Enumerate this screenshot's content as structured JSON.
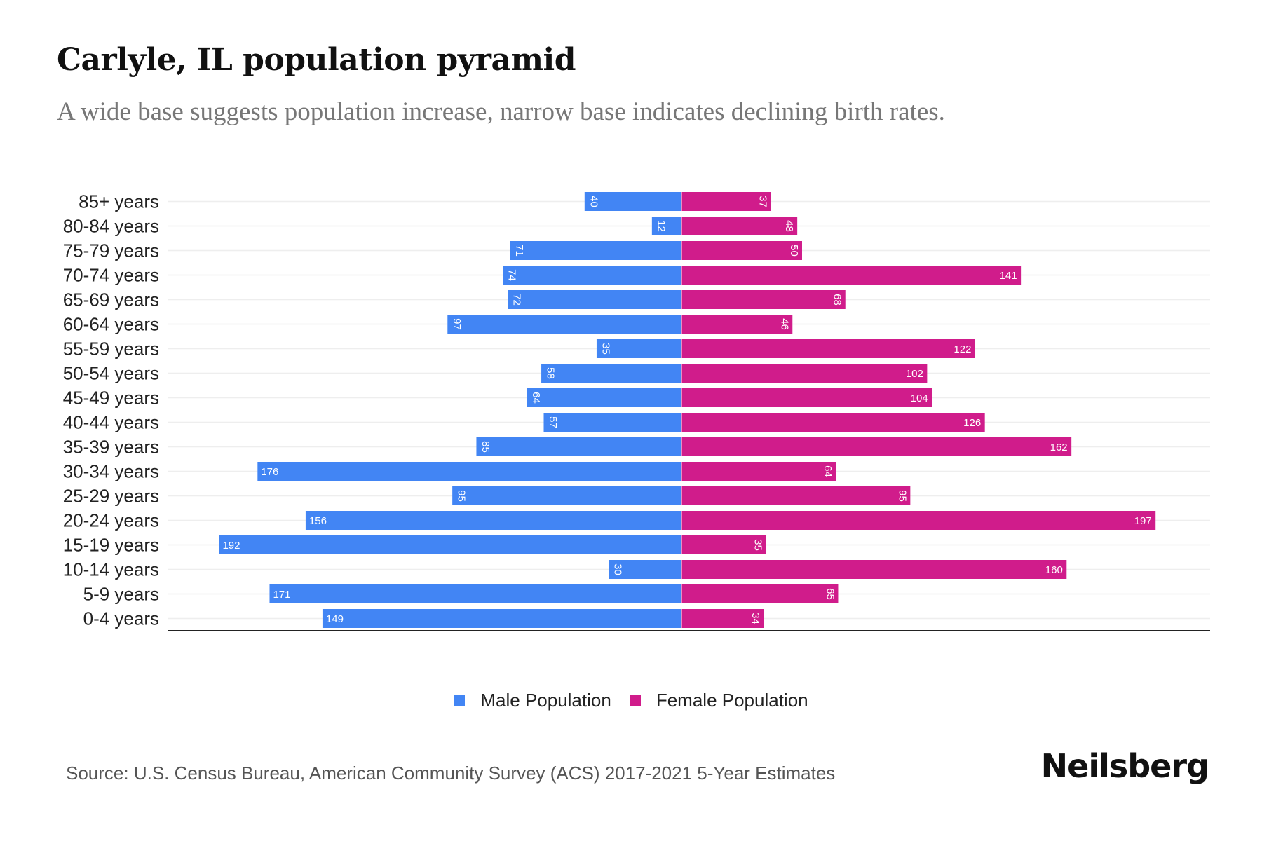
{
  "header": {
    "title": "Carlyle, IL population pyramid",
    "subtitle": "A wide base suggests population increase, narrow base indicates declining birth rates."
  },
  "chart_data": {
    "type": "bar",
    "orientation": "horizontal-diverging",
    "title": "Carlyle, IL population pyramid",
    "subtitle": "A wide base suggests population increase, narrow base indicates declining birth rates.",
    "xlabel": "",
    "ylabel": "",
    "grid": true,
    "legend_position": "bottom",
    "categories": [
      "85+ years",
      "80-84 years",
      "75-79 years",
      "70-74 years",
      "65-69 years",
      "60-64 years",
      "55-59 years",
      "50-54 years",
      "45-49 years",
      "40-44 years",
      "35-39 years",
      "30-34 years",
      "25-29 years",
      "20-24 years",
      "15-19 years",
      "10-14 years",
      "5-9 years",
      "0-4 years"
    ],
    "series": [
      {
        "name": "Male Population",
        "color": "#4285f4",
        "side": "left",
        "values": [
          40,
          12,
          71,
          74,
          72,
          97,
          35,
          58,
          64,
          57,
          85,
          176,
          95,
          156,
          192,
          30,
          171,
          149
        ]
      },
      {
        "name": "Female Population",
        "color": "#d01c8b",
        "side": "right",
        "values": [
          37,
          48,
          50,
          141,
          68,
          46,
          122,
          102,
          104,
          126,
          162,
          64,
          95,
          197,
          35,
          160,
          65,
          34
        ]
      }
    ],
    "xlim": [
      -200,
      200
    ]
  },
  "legend": {
    "items": [
      {
        "label": "Male Population",
        "color": "#4285f4"
      },
      {
        "label": "Female Population",
        "color": "#d01c8b"
      }
    ]
  },
  "footer": {
    "source": "Source: U.S. Census Bureau, American Community Survey (ACS) 2017-2021 5-Year Estimates",
    "brand": "Neilsberg"
  }
}
